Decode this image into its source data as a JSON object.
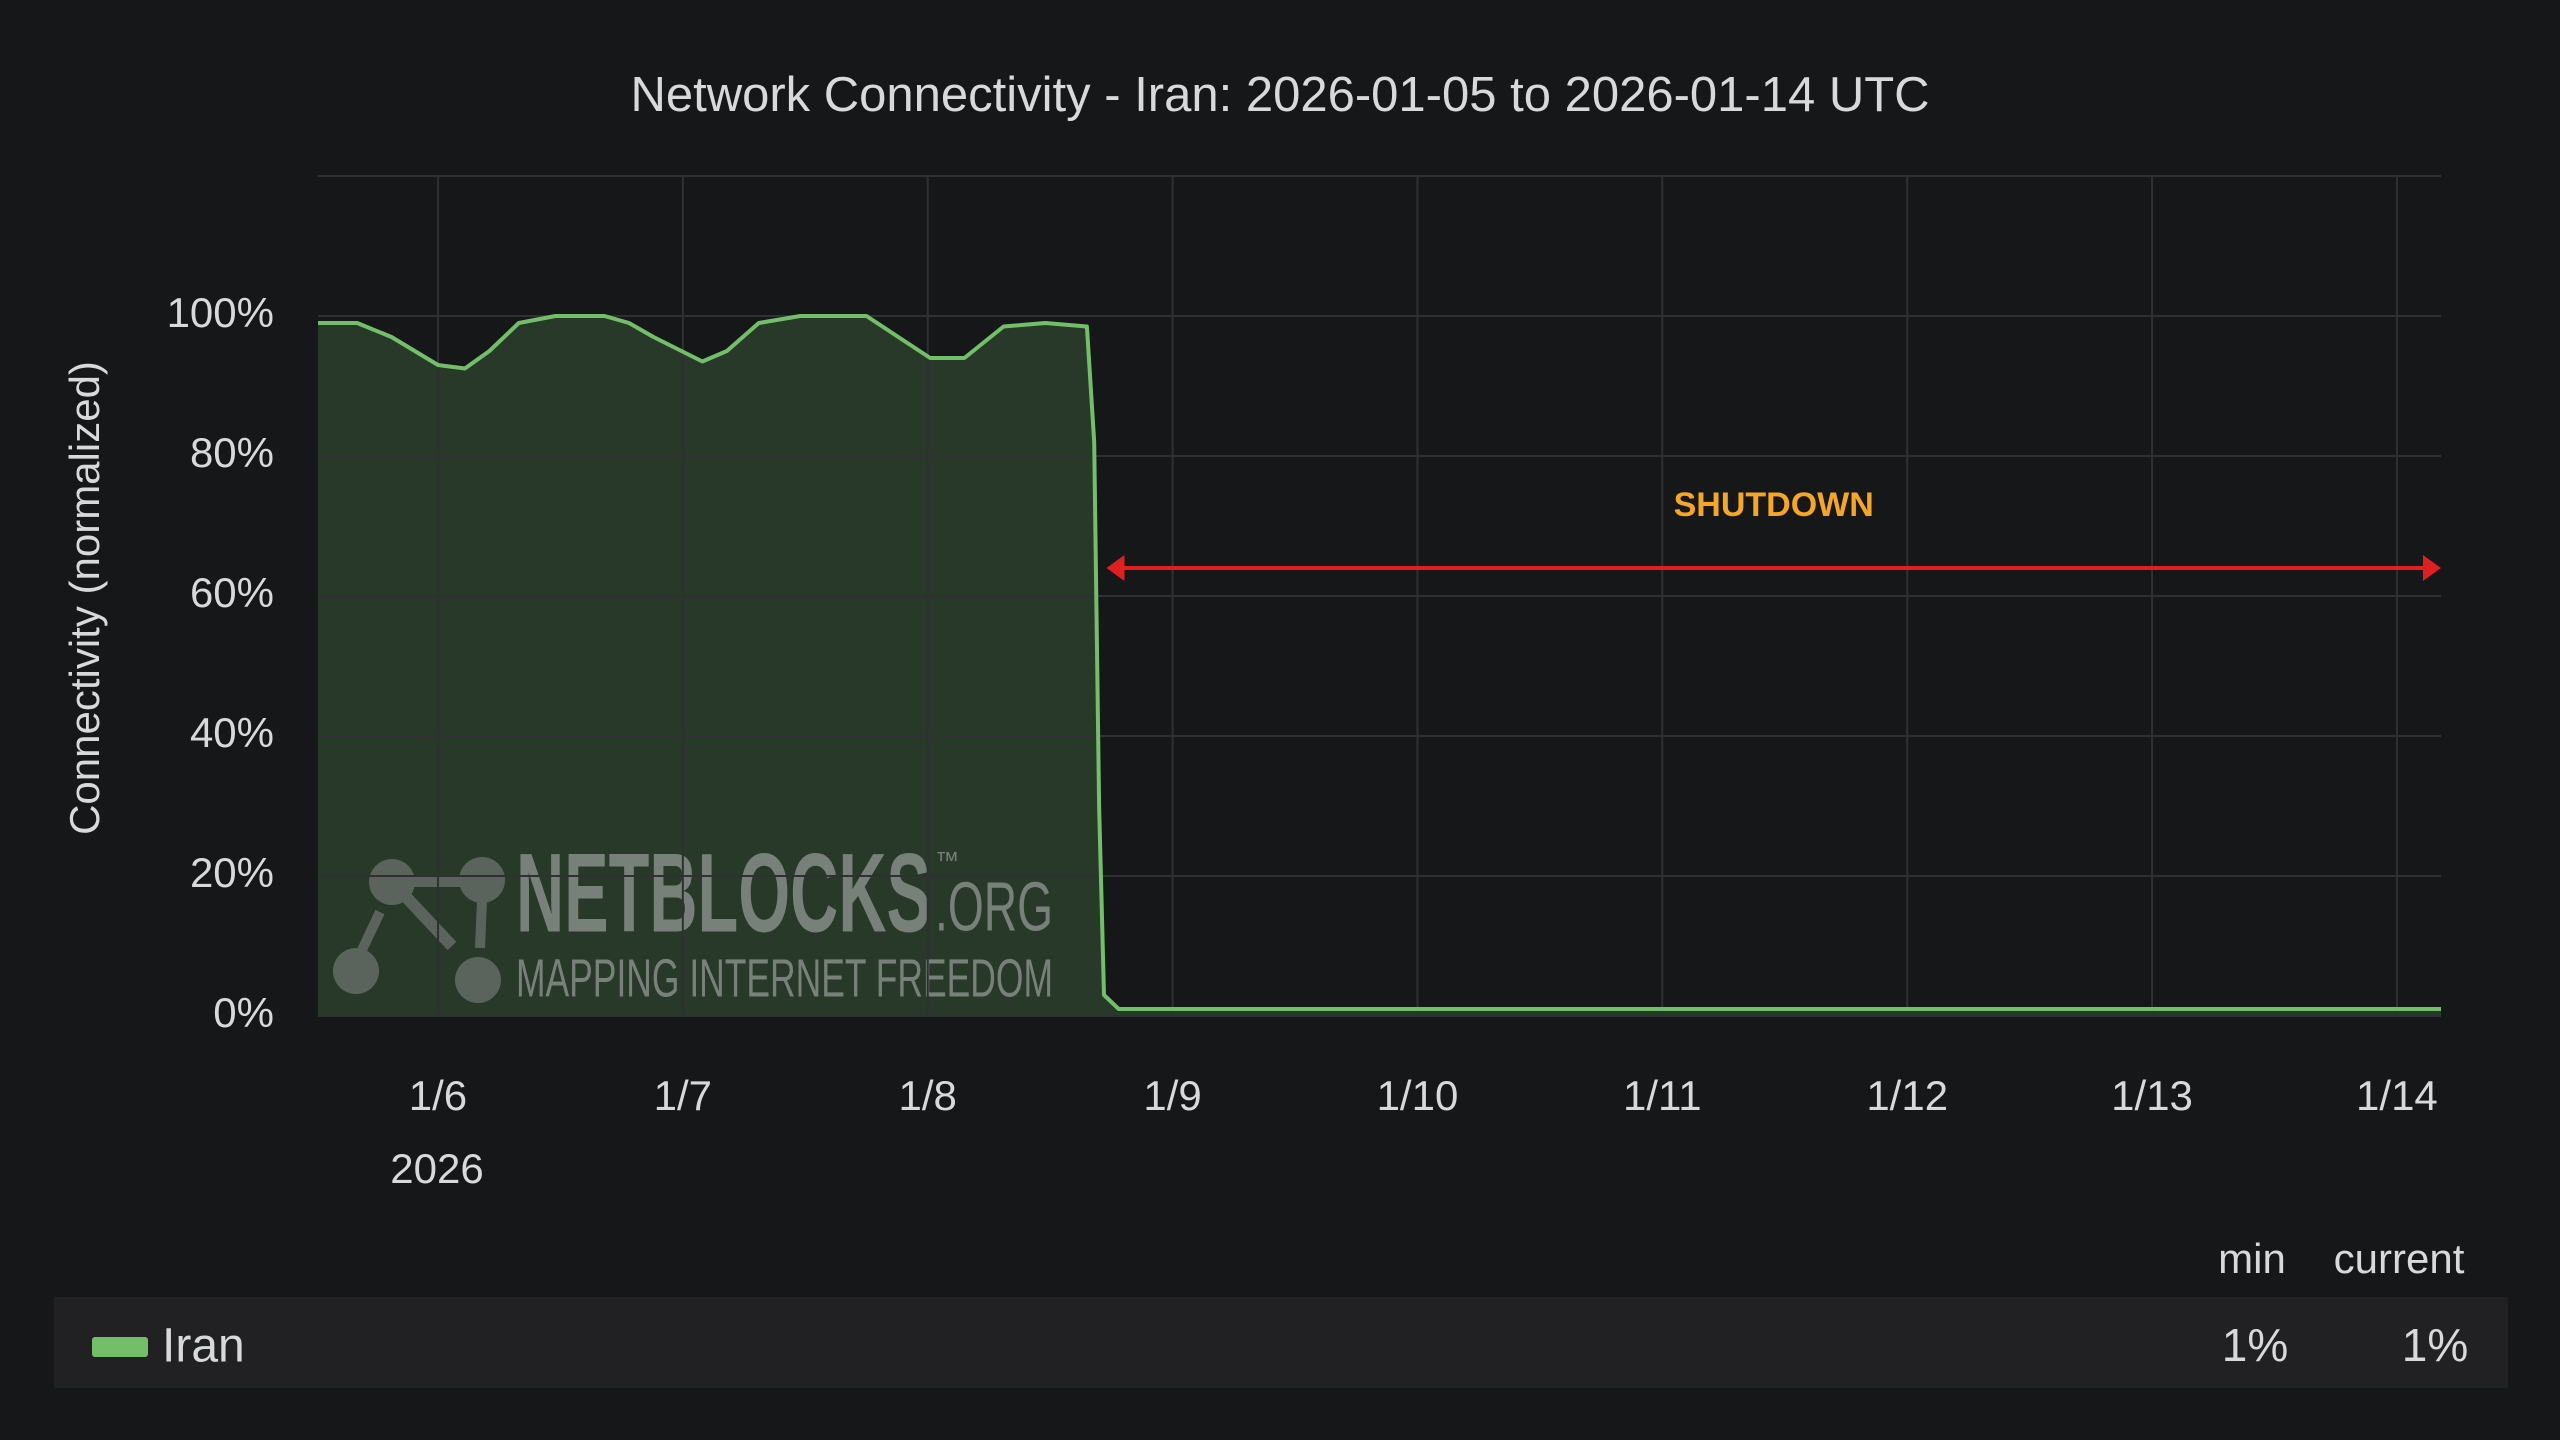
{
  "chart_data": {
    "type": "line",
    "title": "Network Connectivity - Iran: 2026-01-05 to 2026-01-14 UTC",
    "y_label": "Connectivity (normalized)",
    "x_year_label": "2026",
    "xlim": [
      5.51,
      14.18
    ],
    "xticks": [
      {
        "value": 6,
        "label": "1/6"
      },
      {
        "value": 7,
        "label": "1/7"
      },
      {
        "value": 8,
        "label": "1/8"
      },
      {
        "value": 9,
        "label": "1/9"
      },
      {
        "value": 10,
        "label": "1/10"
      },
      {
        "value": 11,
        "label": "1/11"
      },
      {
        "value": 12,
        "label": "1/12"
      },
      {
        "value": 13,
        "label": "1/13"
      },
      {
        "value": 14,
        "label": "1/14"
      }
    ],
    "ylim": [
      0,
      120
    ],
    "yticks": [
      {
        "value": 0,
        "label": "0%"
      },
      {
        "value": 20,
        "label": "20%"
      },
      {
        "value": 40,
        "label": "40%"
      },
      {
        "value": 60,
        "label": "60%"
      },
      {
        "value": 80,
        "label": "80%"
      },
      {
        "value": 100,
        "label": "100%"
      }
    ],
    "grid": true,
    "x": [
      5.51,
      5.67,
      5.81,
      6.0,
      6.11,
      6.21,
      6.33,
      6.48,
      6.68,
      6.78,
      6.88,
      7.08,
      7.18,
      7.31,
      7.48,
      7.75,
      7.88,
      8.01,
      8.15,
      8.31,
      8.48,
      8.65,
      8.68,
      8.7,
      8.72,
      8.78,
      9.0,
      10.0,
      11.0,
      12.0,
      13.0,
      14.0,
      14.18
    ],
    "series": [
      {
        "name": "Iran",
        "color": "#73bf69",
        "values": [
          99,
          99,
          97,
          93,
          92.5,
          95,
          99,
          100,
          100,
          99,
          97,
          93.5,
          95,
          99,
          100,
          100,
          97,
          94,
          94,
          98.5,
          99,
          98.5,
          82,
          30,
          3,
          1,
          1,
          1,
          1,
          1,
          1,
          1,
          1
        ],
        "stats": [
          "1%",
          "1%"
        ]
      }
    ],
    "legend_columns": [
      "min",
      "current"
    ],
    "annotation": {
      "text": "SHUTDOWN",
      "x": [
        8.73,
        14.18
      ],
      "y": 64
    },
    "watermark": {
      "name": "NETBLOCKS",
      "tm": "™",
      "tld": ".ORG",
      "tagline": "MAPPING INTERNET FREEDOM"
    }
  }
}
